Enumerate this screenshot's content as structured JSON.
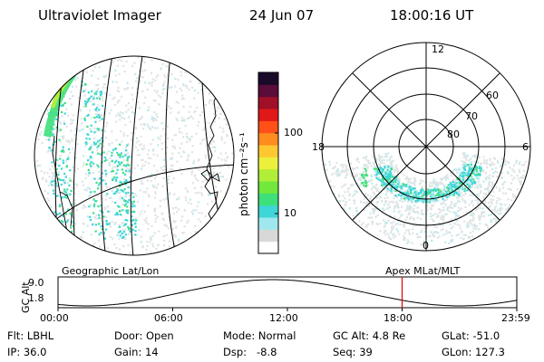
{
  "header": {
    "title": "Ultraviolet Imager",
    "date": "24 Jun 07",
    "time": "18:00:16 UT"
  },
  "colorbar": {
    "unit_label": "photon cm⁻²s⁻¹",
    "ticks": [
      {
        "label": "100",
        "value": 100
      },
      {
        "label": "10",
        "value": 10
      }
    ],
    "colors": [
      "#ffffff",
      "#d8d8d8",
      "#9ee8ee",
      "#3ed6d6",
      "#3ee07a",
      "#72e83c",
      "#b0ee3a",
      "#ecf03c",
      "#ffc830",
      "#ff8c1e",
      "#ff5018",
      "#e01818",
      "#a01028",
      "#5a0c3a",
      "#1a0a2a"
    ]
  },
  "polar": {
    "hour_labels": [
      "12",
      "18",
      "6",
      "0"
    ],
    "lat_labels": [
      "60",
      "70",
      "80"
    ]
  },
  "panel_labels": {
    "left": "Geographic Lat/Lon",
    "right": "Apex MLat/MLT"
  },
  "altitude_plot": {
    "y_axis_label": "GC Alt",
    "y_ticks": [
      "9.0",
      "1.8"
    ],
    "x_ticks": [
      "00:00",
      "06:00",
      "12:00",
      "18:00",
      "23:59"
    ],
    "current_time_marker_hours": 18.0,
    "marker_color": "#e00000"
  },
  "info": {
    "flt": "Flt: LBHL",
    "ip": "IP: 36.0",
    "door": "Door: Open",
    "gain": "Gain: 14",
    "mode": "Mode: Normal",
    "dsp": "Dsp:   -8.8",
    "gcalt": "GC Alt: 4.8 Re",
    "seq": "Seq: 39",
    "glat": "GLat: -51.0",
    "glon": "GLon: 127.3"
  }
}
